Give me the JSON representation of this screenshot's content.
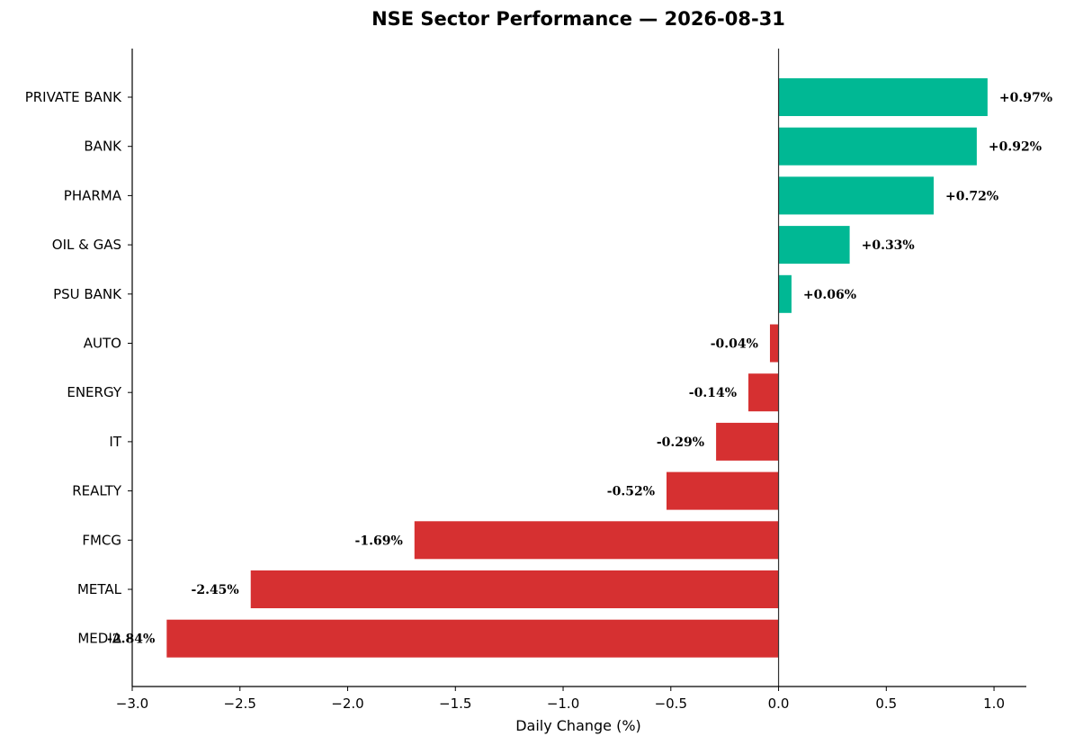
{
  "chart_data": {
    "type": "bar",
    "orientation": "horizontal",
    "title": "NSE Sector Performance — 2026-08-31",
    "xlabel": "Daily Change (%)",
    "ylabel": "",
    "xlim": [
      -3.0,
      1.15
    ],
    "xticks": [
      -3.0,
      -2.5,
      -2.0,
      -1.5,
      -1.0,
      -0.5,
      0.0,
      0.5,
      1.0
    ],
    "xtick_labels": [
      "−3.0",
      "−2.5",
      "−2.0",
      "−1.5",
      "−1.0",
      "−0.5",
      "0.0",
      "0.5",
      "1.0"
    ],
    "grid": false,
    "categories": [
      "PRIVATE BANK",
      "BANK",
      "PHARMA",
      "OIL & GAS",
      "PSU BANK",
      "AUTO",
      "ENERGY",
      "IT",
      "REALTY",
      "FMCG",
      "METAL",
      "MEDIA"
    ],
    "values": [
      0.97,
      0.92,
      0.72,
      0.33,
      0.06,
      -0.04,
      -0.14,
      -0.29,
      -0.52,
      -1.69,
      -2.45,
      -2.84
    ],
    "data_labels": [
      "+0.97%",
      "+0.92%",
      "+0.72%",
      "+0.33%",
      "+0.06%",
      "-0.04%",
      "-0.14%",
      "-0.29%",
      "-0.52%",
      "-1.69%",
      "-2.45%",
      "-2.84%"
    ],
    "colors": {
      "positive": "#00b894",
      "negative": "#d63031",
      "zero_line": "#333333",
      "axis": "#000000"
    }
  }
}
